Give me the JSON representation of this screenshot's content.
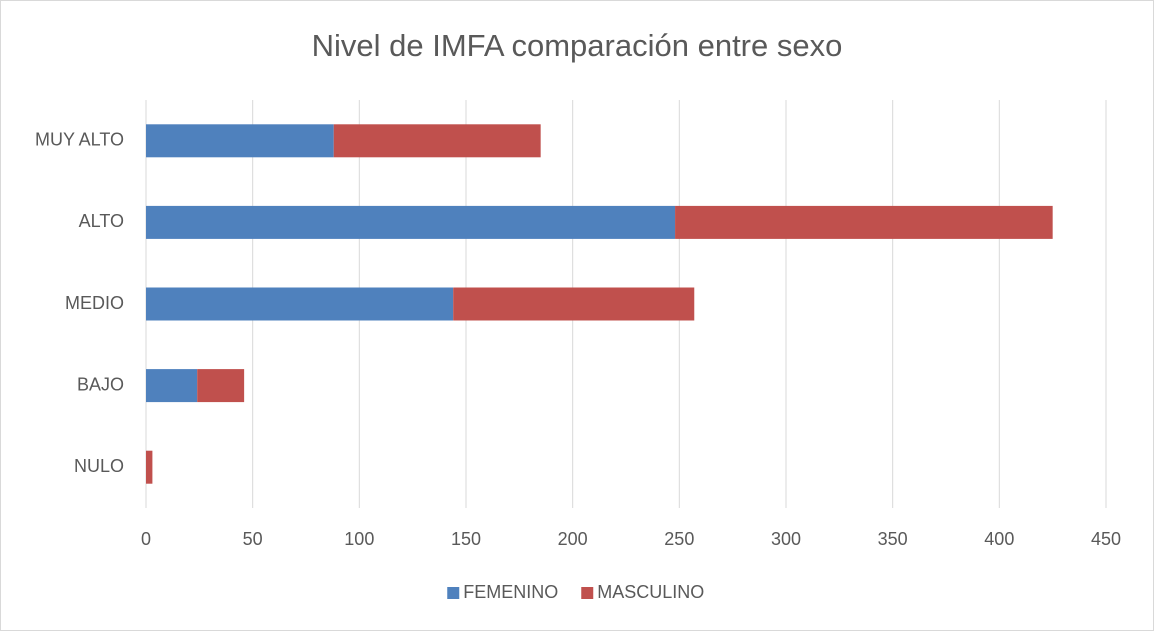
{
  "chart_data": {
    "type": "stacked_hbar",
    "title": "Nivel de IMFA comparación entre sexo",
    "categories": [
      "NULO",
      "BAJO",
      "MEDIO",
      "ALTO",
      "MUY ALTO"
    ],
    "series": [
      {
        "name": "FEMENINO",
        "color": "#4f81bd",
        "values": [
          0,
          24,
          144,
          248,
          88
        ]
      },
      {
        "name": "MASCULINO",
        "color": "#c0504d",
        "values": [
          3,
          22,
          113,
          177,
          97
        ]
      }
    ],
    "xlim": [
      0,
      450
    ],
    "xticks": [
      0,
      50,
      100,
      150,
      200,
      250,
      300,
      350,
      400,
      450
    ],
    "grid": true,
    "legend": "bottom"
  }
}
